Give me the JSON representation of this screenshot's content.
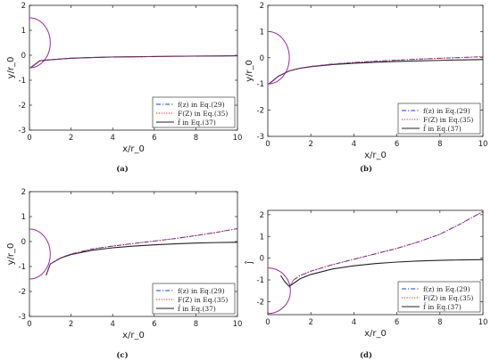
{
  "chart_data": [
    {
      "type": "line",
      "sublabel": "(a)",
      "xlabel": "x/r_0",
      "ylabel": "y/r_0",
      "xlim": [
        0,
        10
      ],
      "ylim": [
        -3,
        2
      ],
      "xticks": [
        "0",
        "2",
        "4",
        "6",
        "8",
        "10"
      ],
      "yticks": [
        "-3",
        "-2",
        "-1",
        "0",
        "1",
        "2"
      ],
      "legend_position": "bottom-right",
      "circle": {
        "cx": 0,
        "cy": 0.5,
        "r": 1.0
      },
      "series": [
        {
          "name": "f(z) in Eq.(29)",
          "color": "#1f3fd6",
          "style": "dashdot",
          "x": [
            0.05,
            0.5,
            1,
            2,
            3,
            4,
            5,
            6,
            7,
            8,
            9,
            10
          ],
          "y": [
            -0.5,
            -0.22,
            -0.18,
            -0.12,
            -0.09,
            -0.07,
            -0.06,
            -0.05,
            -0.04,
            -0.035,
            -0.03,
            -0.02
          ]
        },
        {
          "name": "F(Z) in Eq.(35)",
          "color": "#e02020",
          "style": "dotted",
          "x": [
            0.05,
            0.5,
            1,
            2,
            3,
            4,
            5,
            6,
            7,
            8,
            9,
            10
          ],
          "y": [
            -0.5,
            -0.22,
            -0.18,
            -0.12,
            -0.09,
            -0.07,
            -0.06,
            -0.05,
            -0.04,
            -0.035,
            -0.03,
            -0.02
          ]
        },
        {
          "name": "f̂ in Eq.(37)",
          "color": "#222222",
          "style": "solid",
          "x": [
            0.05,
            0.5,
            1,
            2,
            3,
            4,
            5,
            6,
            7,
            8,
            9,
            10
          ],
          "y": [
            -0.5,
            -0.22,
            -0.18,
            -0.12,
            -0.09,
            -0.07,
            -0.06,
            -0.05,
            -0.04,
            -0.035,
            -0.03,
            -0.02
          ]
        }
      ]
    },
    {
      "type": "line",
      "sublabel": "(b)",
      "xlabel": "x/r_0",
      "ylabel": "y/r_0",
      "xlim": [
        0,
        10
      ],
      "ylim": [
        -3,
        2
      ],
      "xticks": [
        "0",
        "2",
        "4",
        "6",
        "8",
        "10"
      ],
      "yticks": [
        "-3",
        "-2",
        "-1",
        "0",
        "1",
        "2"
      ],
      "legend_position": "bottom-right",
      "circle": {
        "cx": 0,
        "cy": 0.0,
        "r": 1.0
      },
      "series": [
        {
          "name": "f(z) in Eq.(29)",
          "color": "#1f3fd6",
          "style": "dashdot",
          "x": [
            0.05,
            0.5,
            1,
            1.5,
            2,
            3,
            4,
            5,
            6,
            7,
            8,
            9,
            10
          ],
          "y": [
            -1.0,
            -0.7,
            -0.5,
            -0.4,
            -0.33,
            -0.24,
            -0.18,
            -0.13,
            -0.09,
            -0.05,
            -0.02,
            0.01,
            0.04
          ]
        },
        {
          "name": "F(Z) in Eq.(35)",
          "color": "#e02020",
          "style": "dotted",
          "x": [
            0.05,
            0.5,
            1,
            1.5,
            2,
            3,
            4,
            5,
            6,
            7,
            8,
            9,
            10
          ],
          "y": [
            -1.0,
            -0.7,
            -0.5,
            -0.4,
            -0.33,
            -0.24,
            -0.18,
            -0.13,
            -0.09,
            -0.05,
            -0.02,
            0.01,
            0.04
          ]
        },
        {
          "name": "f̂ in Eq.(37)",
          "color": "#222222",
          "style": "solid",
          "x": [
            0.05,
            0.5,
            1,
            1.5,
            2,
            3,
            4,
            5,
            6,
            7,
            8,
            9,
            10
          ],
          "y": [
            -1.0,
            -0.7,
            -0.5,
            -0.4,
            -0.34,
            -0.26,
            -0.21,
            -0.17,
            -0.14,
            -0.12,
            -0.1,
            -0.08,
            -0.07
          ]
        }
      ]
    },
    {
      "type": "line",
      "sublabel": "(c)",
      "xlabel": "x/r_0",
      "ylabel": "y/r_0",
      "xlim": [
        0,
        10
      ],
      "ylim": [
        -3,
        2
      ],
      "xticks": [
        "0",
        "2",
        "4",
        "6",
        "8",
        "10"
      ],
      "yticks": [
        "-3",
        "-2",
        "-1",
        "0",
        "1",
        "2"
      ],
      "legend_position": "bottom-right",
      "circle": {
        "cx": 0,
        "cy": -0.5,
        "r": 1.0
      },
      "series": [
        {
          "name": "f(z) in Eq.(29)",
          "color": "#1f3fd6",
          "style": "dashdot",
          "x": [
            0.8,
            1,
            1.5,
            2,
            3,
            4,
            5,
            6,
            7,
            8,
            9,
            10
          ],
          "y": [
            -1.35,
            -0.9,
            -0.65,
            -0.5,
            -0.3,
            -0.18,
            -0.08,
            0.02,
            0.12,
            0.24,
            0.37,
            0.52
          ]
        },
        {
          "name": "F(Z) in Eq.(35)",
          "color": "#e02020",
          "style": "dotted",
          "x": [
            0.8,
            1,
            1.5,
            2,
            3,
            4,
            5,
            6,
            7,
            8,
            9,
            10
          ],
          "y": [
            -1.35,
            -0.9,
            -0.65,
            -0.5,
            -0.3,
            -0.18,
            -0.08,
            0.02,
            0.12,
            0.24,
            0.37,
            0.52
          ]
        },
        {
          "name": "f̂ in Eq.(37)",
          "color": "#222222",
          "style": "solid",
          "x": [
            0.8,
            1,
            1.5,
            2,
            3,
            4,
            5,
            6,
            7,
            8,
            9,
            10
          ],
          "y": [
            -1.35,
            -0.9,
            -0.66,
            -0.52,
            -0.35,
            -0.25,
            -0.18,
            -0.13,
            -0.09,
            -0.06,
            -0.04,
            -0.03
          ]
        }
      ]
    },
    {
      "type": "line",
      "sublabel": "(d)",
      "xlabel": "x/r_0",
      "ylabel": "ĵ",
      "xlim": [
        0,
        10
      ],
      "ylim": [
        -2.6,
        2.2
      ],
      "xticks": [
        "0",
        "2",
        "4",
        "6",
        "8",
        "10"
      ],
      "yticks": [
        "-2",
        "-1",
        "0",
        "1",
        "2"
      ],
      "ytick_values": [
        -2,
        -1,
        0,
        1,
        2
      ],
      "legend_position": "bottom-right",
      "circle": {
        "cx": 0,
        "cy": -1.5,
        "r": 1.05
      },
      "series": [
        {
          "name": "f(z) in Eq.(29)",
          "color": "#1f3fd6",
          "style": "dashdot",
          "x": [
            1,
            1.2,
            1.5,
            2,
            3,
            4,
            5,
            6,
            7,
            8,
            9,
            10
          ],
          "y": [
            -1.35,
            -1.0,
            -0.8,
            -0.6,
            -0.3,
            -0.05,
            0.2,
            0.45,
            0.75,
            1.1,
            1.6,
            2.15
          ]
        },
        {
          "name": "F(Z) in Eq.(35)",
          "color": "#e02020",
          "style": "dotted",
          "x": [
            1,
            1.2,
            1.5,
            2,
            3,
            4,
            5,
            6,
            7,
            8,
            9,
            10
          ],
          "y": [
            -1.35,
            -1.0,
            -0.8,
            -0.6,
            -0.3,
            -0.05,
            0.2,
            0.45,
            0.75,
            1.1,
            1.6,
            2.15
          ]
        },
        {
          "name": "f̂ in Eq.(37)",
          "color": "#222222",
          "style": "solid",
          "x": [
            0.6,
            0.8,
            1,
            1.5,
            2,
            3,
            4,
            5,
            6,
            7,
            8,
            9,
            10
          ],
          "y": [
            -0.8,
            -1.1,
            -1.3,
            -0.95,
            -0.75,
            -0.5,
            -0.35,
            -0.25,
            -0.18,
            -0.13,
            -0.1,
            -0.08,
            -0.07
          ]
        }
      ]
    }
  ]
}
